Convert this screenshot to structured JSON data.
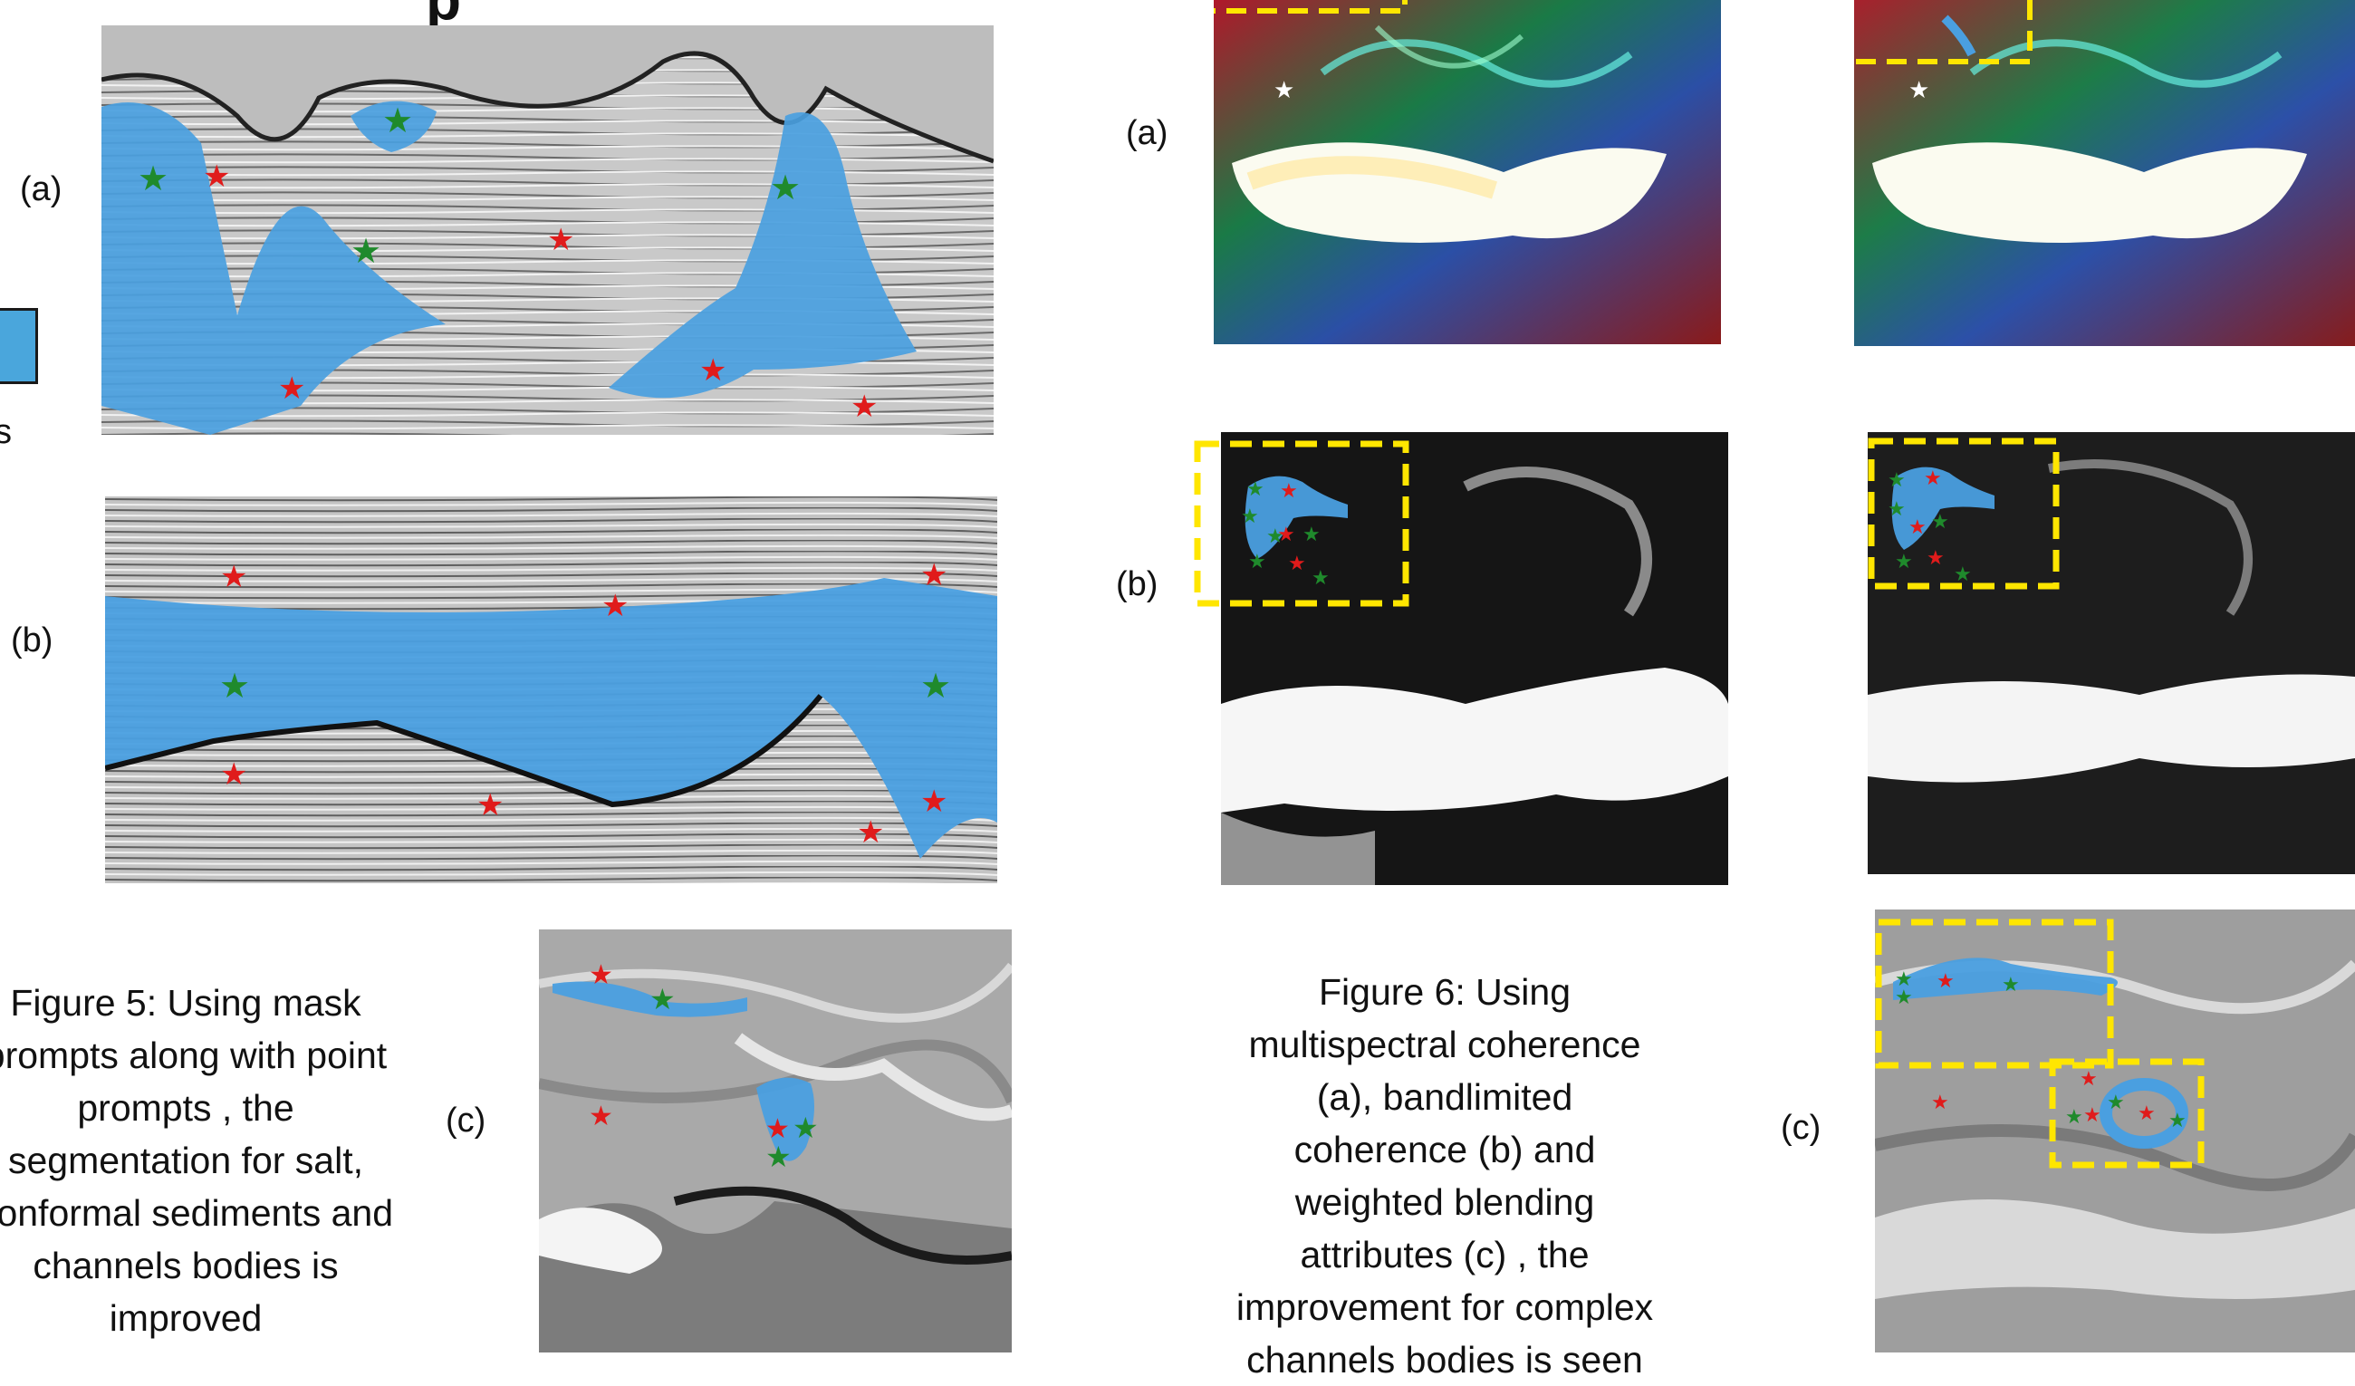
{
  "figure5": {
    "panel_labels": {
      "a": "(a)",
      "b": "(b)",
      "c": "(c)"
    },
    "caption_lines": [
      "Figure 5:  Using mask",
      "prompts along with point",
      "prompts , the",
      "segmentation for salt,",
      "conformal sediments and",
      "channels bodies is",
      "improved"
    ],
    "legend_text_fragment": "s"
  },
  "figure6": {
    "panel_labels": {
      "a": "(a)",
      "b": "(b)",
      "c": "(c)"
    },
    "caption_lines": [
      "Figure 6:  Using",
      "multispectral coherence",
      "(a), bandlimited",
      "coherence (b) and",
      "weighted blending",
      "attributes (c) , the",
      "improvement for complex",
      "channels bodies is seen"
    ]
  },
  "colors": {
    "mask_blue": "#4a9fe0",
    "positive_star": "#1f8a2c",
    "negative_star": "#e01b1b",
    "box_yellow": "#ffe600"
  }
}
